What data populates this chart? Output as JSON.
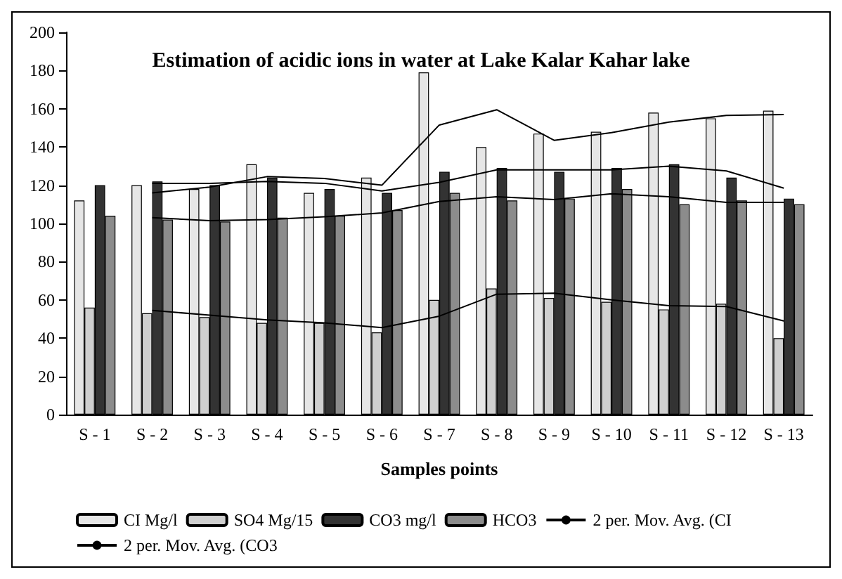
{
  "chart_data": {
    "type": "bar",
    "title": "Estimation of acidic ions in water at Lake Kalar Kahar lake",
    "xlabel": "Samples points",
    "categories": [
      "S - 1",
      "S - 2",
      "S - 3",
      "S - 4",
      "S - 5",
      "S - 6",
      "S - 7",
      "S - 8",
      "S - 9",
      "S - 10",
      "S - 11",
      "S - 12",
      "S - 13"
    ],
    "series": [
      {
        "name": "CI Mg/l",
        "color": "#e6e6e6",
        "values": [
          112,
          120,
          118,
          131,
          116,
          124,
          179,
          140,
          147,
          148,
          158,
          155,
          159
        ]
      },
      {
        "name": "SO4 Mg/15",
        "color": "#cfcfcf",
        "values": [
          56,
          53,
          51,
          48,
          48,
          43,
          60,
          66,
          61,
          59,
          55,
          58,
          40
        ]
      },
      {
        "name": "CO3 mg/l",
        "color": "#333333",
        "values": [
          120,
          122,
          120,
          124,
          118,
          116,
          127,
          129,
          127,
          129,
          131,
          124,
          113
        ]
      },
      {
        "name": "HCO3",
        "color": "#8c8c8c",
        "values": [
          104,
          102,
          101,
          103,
          104,
          107,
          116,
          112,
          113,
          118,
          110,
          112,
          110
        ]
      },
      {
        "name": "2 per. Mov. Avg. (CI",
        "type": "line",
        "color": "#000000",
        "values": [
          null,
          116,
          119,
          124.5,
          123.5,
          120,
          151.5,
          159.5,
          143.5,
          147.5,
          153,
          156.5,
          157
        ]
      },
      {
        "type": "line",
        "color": "#000000",
        "values": [
          null,
          54.5,
          52,
          49.5,
          48,
          45.5,
          51.5,
          63,
          63.5,
          60,
          57,
          56.5,
          49
        ]
      },
      {
        "name": "2 per. Mov. Avg. (CO3",
        "type": "line",
        "color": "#000000",
        "values": [
          null,
          121,
          121,
          122,
          121,
          117,
          121.5,
          128,
          128,
          128,
          130,
          127.5,
          118.5
        ]
      },
      {
        "type": "line",
        "color": "#000000",
        "values": [
          null,
          103,
          101.5,
          102,
          103.5,
          105.5,
          111.5,
          114,
          112.5,
          115.5,
          114,
          111,
          111
        ]
      }
    ],
    "ylim": [
      0,
      200
    ],
    "yticks": [
      0,
      20,
      40,
      60,
      80,
      100,
      120,
      140,
      160,
      180,
      200
    ],
    "grid": false,
    "legend": "bottom",
    "marker": "none"
  }
}
